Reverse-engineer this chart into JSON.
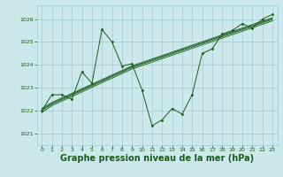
{
  "background_color": "#cce8ea",
  "grid_color": "#9ecdd1",
  "line_color": "#1a5c1a",
  "marker_color": "#1a5c1a",
  "xlabel": "Graphe pression niveau de la mer (hPa)",
  "xlabel_fontsize": 7.0,
  "ylabel_ticks": [
    1021,
    1022,
    1023,
    1024,
    1025,
    1026
  ],
  "xlim": [
    -0.5,
    23.5
  ],
  "ylim": [
    1020.5,
    1026.6
  ],
  "xticks": [
    0,
    1,
    2,
    3,
    4,
    5,
    6,
    7,
    8,
    9,
    10,
    11,
    12,
    13,
    14,
    15,
    16,
    17,
    18,
    19,
    20,
    21,
    22,
    23
  ],
  "main_x": [
    0,
    1,
    2,
    3,
    4,
    5,
    6,
    7,
    8,
    9,
    10,
    11,
    12,
    13,
    14,
    15,
    16,
    17,
    18,
    19,
    20,
    21,
    22,
    23
  ],
  "main_y": [
    1022.0,
    1022.7,
    1022.7,
    1022.5,
    1023.7,
    1023.2,
    1025.55,
    1025.0,
    1023.95,
    1024.05,
    1022.9,
    1021.35,
    1021.6,
    1022.1,
    1021.85,
    1022.7,
    1024.5,
    1024.7,
    1025.35,
    1025.5,
    1025.8,
    1025.6,
    1026.0,
    1026.2
  ],
  "band_lines": [
    [
      1022.0,
      1022.28,
      1022.48,
      1022.68,
      1022.88,
      1023.08,
      1023.28,
      1023.48,
      1023.68,
      1023.88,
      1024.03,
      1024.18,
      1024.33,
      1024.48,
      1024.63,
      1024.78,
      1024.93,
      1025.08,
      1025.23,
      1025.38,
      1025.53,
      1025.68,
      1025.83,
      1025.98
    ],
    [
      1022.05,
      1022.32,
      1022.52,
      1022.72,
      1022.92,
      1023.12,
      1023.32,
      1023.52,
      1023.72,
      1023.92,
      1024.07,
      1024.22,
      1024.37,
      1024.52,
      1024.67,
      1024.82,
      1024.97,
      1025.12,
      1025.27,
      1025.42,
      1025.57,
      1025.72,
      1025.87,
      1026.02
    ],
    [
      1021.92,
      1022.22,
      1022.42,
      1022.62,
      1022.82,
      1023.02,
      1023.22,
      1023.42,
      1023.62,
      1023.82,
      1023.97,
      1024.12,
      1024.27,
      1024.42,
      1024.57,
      1024.72,
      1024.87,
      1025.02,
      1025.17,
      1025.32,
      1025.47,
      1025.62,
      1025.77,
      1025.92
    ],
    [
      1022.1,
      1022.36,
      1022.56,
      1022.76,
      1022.96,
      1023.16,
      1023.36,
      1023.56,
      1023.76,
      1023.96,
      1024.11,
      1024.26,
      1024.41,
      1024.56,
      1024.71,
      1024.86,
      1025.01,
      1025.16,
      1025.31,
      1025.46,
      1025.61,
      1025.76,
      1025.91,
      1026.06
    ]
  ]
}
